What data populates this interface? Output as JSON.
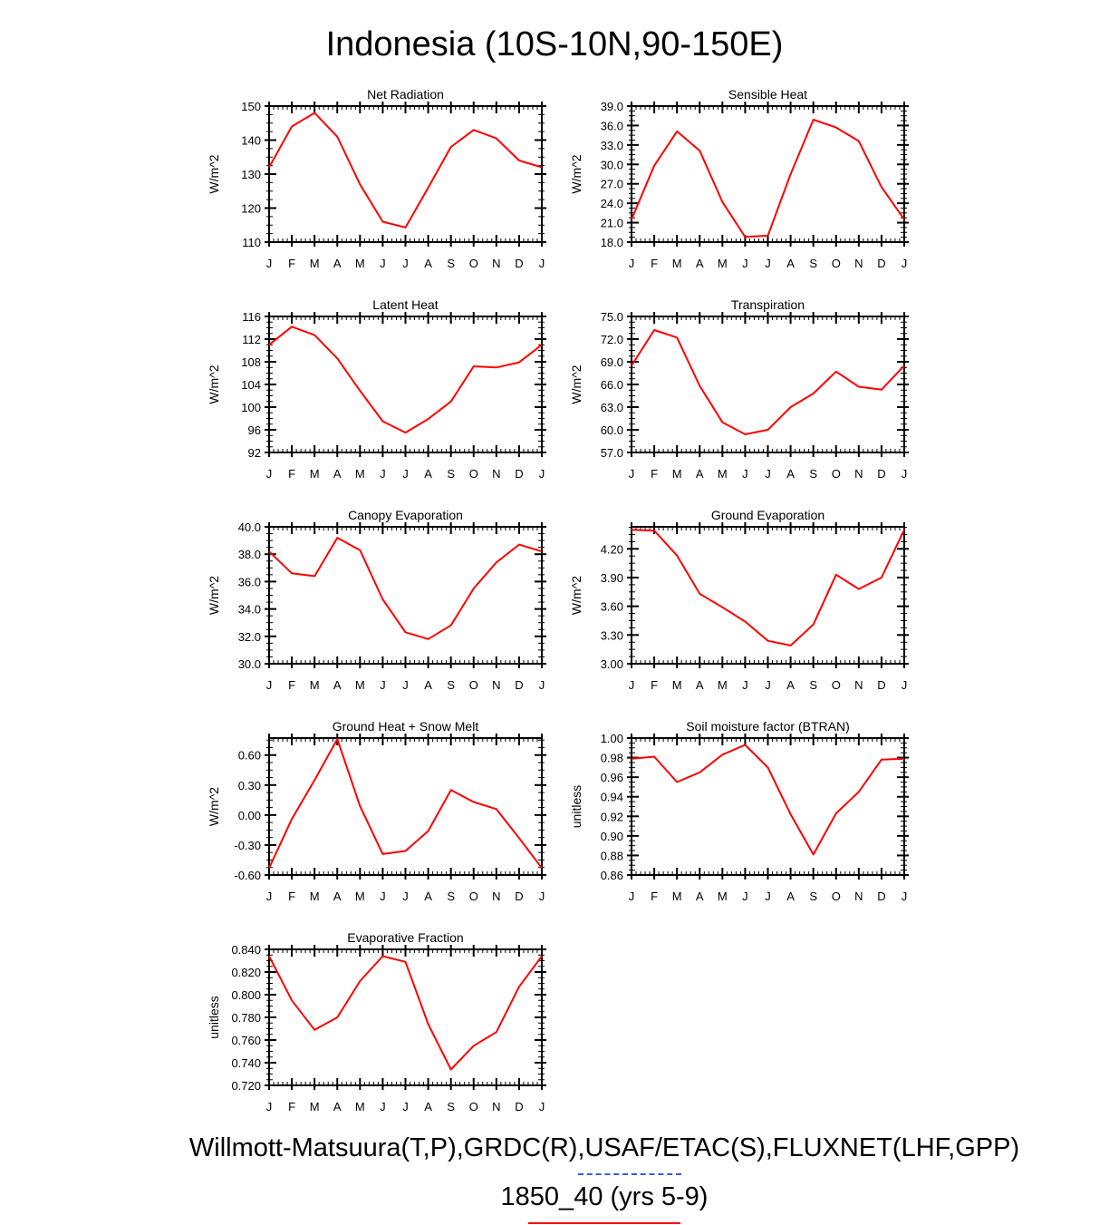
{
  "title": "Indonesia (10S-10N,90-150E)",
  "legend": {
    "reference_text": "Willmott-Matsuura(T,P),GRDC(R),USAF/ETAC(S),FLUXNET(LHF,GPP)",
    "model_text": "1850_40 (yrs 5-9)",
    "reference_color": "#3b5bdb",
    "model_color": "#ff0000"
  },
  "months": [
    "J",
    "F",
    "M",
    "A",
    "M",
    "J",
    "J",
    "A",
    "S",
    "O",
    "N",
    "D",
    "J"
  ],
  "chart_data": [
    {
      "type": "line",
      "title": "Net Radiation",
      "ylabel": "W/m^2",
      "ylim": [
        110,
        150
      ],
      "yticks": [
        110,
        120,
        130,
        140,
        150
      ],
      "ytick_labels": [
        "110",
        "120",
        "130",
        "140",
        "150"
      ],
      "series": [
        {
          "values": [
            132,
            144,
            148,
            141,
            127,
            116,
            114.3,
            126,
            138,
            143,
            140.5,
            134,
            132
          ]
        }
      ]
    },
    {
      "type": "line",
      "title": "Sensible Heat",
      "ylabel": "W/m^2",
      "ylim": [
        18,
        39
      ],
      "yticks": [
        18,
        21,
        24,
        27,
        30,
        33,
        36,
        39
      ],
      "ytick_labels": [
        "18.0",
        "21.0",
        "24.0",
        "27.0",
        "30.0",
        "33.0",
        "36.0",
        "39.0"
      ],
      "series": [
        {
          "values": [
            21.5,
            29.8,
            35.1,
            32.1,
            24.2,
            18.8,
            19.0,
            28.5,
            36.9,
            35.7,
            33.6,
            26.5,
            21.5
          ]
        }
      ]
    },
    {
      "type": "line",
      "title": "Latent Heat",
      "ylabel": "W/m^2",
      "ylim": [
        92,
        116
      ],
      "yticks": [
        92,
        96,
        100,
        104,
        108,
        112,
        116
      ],
      "ytick_labels": [
        "92",
        "96",
        "100",
        "104",
        "108",
        "112",
        "116"
      ],
      "series": [
        {
          "values": [
            111,
            114.2,
            112.7,
            108.6,
            102.9,
            97.5,
            95.5,
            97.9,
            101,
            107.2,
            107,
            107.9,
            111
          ]
        }
      ]
    },
    {
      "type": "line",
      "title": "Transpiration",
      "ylabel": "W/m^2",
      "ylim": [
        57,
        75
      ],
      "yticks": [
        57,
        60,
        63,
        66,
        69,
        72,
        75
      ],
      "ytick_labels": [
        "57.0",
        "60.0",
        "63.0",
        "66.0",
        "69.0",
        "72.0",
        "75.0"
      ],
      "series": [
        {
          "values": [
            68.5,
            73.2,
            72.2,
            65.8,
            61,
            59.4,
            60,
            63,
            64.8,
            67.7,
            65.7,
            65.3,
            68.5
          ]
        }
      ]
    },
    {
      "type": "line",
      "title": "Canopy Evaporation",
      "ylabel": "W/m^2",
      "ylim": [
        30,
        40
      ],
      "yticks": [
        30,
        32,
        34,
        36,
        38,
        40
      ],
      "ytick_labels": [
        "30.0",
        "32.0",
        "34.0",
        "36.0",
        "38.0",
        "40.0"
      ],
      "series": [
        {
          "values": [
            38.2,
            36.6,
            36.4,
            39.2,
            38.3,
            34.7,
            32.3,
            31.8,
            32.8,
            35.5,
            37.4,
            38.7,
            38.2
          ]
        }
      ]
    },
    {
      "type": "line",
      "title": "Ground Evaporation",
      "ylabel": "W/m^2",
      "ylim": [
        3,
        4.43
      ],
      "yticks": [
        3.0,
        3.3,
        3.6,
        3.9,
        4.2
      ],
      "ytick_labels": [
        "3.00",
        "3.30",
        "3.60",
        "3.90",
        "4.20"
      ],
      "series": [
        {
          "values": [
            4.4,
            4.39,
            4.13,
            3.73,
            3.59,
            3.44,
            3.24,
            3.19,
            3.41,
            3.93,
            3.78,
            3.9,
            4.4
          ]
        }
      ]
    },
    {
      "type": "line",
      "title": "Ground Heat + Snow Melt",
      "ylabel": "W/m^2",
      "ylim": [
        -0.6,
        0.77
      ],
      "yticks": [
        -0.6,
        -0.3,
        0,
        0.3,
        0.6
      ],
      "ytick_labels": [
        "-0.60",
        "-0.30",
        "0.00",
        "0.30",
        "0.60"
      ],
      "series": [
        {
          "values": [
            -0.53,
            -0.04,
            0.35,
            0.76,
            0.09,
            -0.39,
            -0.36,
            -0.16,
            0.25,
            0.13,
            0.06,
            -0.23,
            -0.53
          ]
        }
      ]
    },
    {
      "type": "line",
      "title": "Soil moisture factor (BTRAN)",
      "ylabel": "unitless",
      "ylim": [
        0.86,
        1.0
      ],
      "yticks": [
        0.86,
        0.88,
        0.9,
        0.92,
        0.94,
        0.96,
        0.98,
        1.0
      ],
      "ytick_labels": [
        "0.86",
        "0.88",
        "0.90",
        "0.92",
        "0.94",
        "0.96",
        "0.98",
        "1.00"
      ],
      "series": [
        {
          "values": [
            0.979,
            0.981,
            0.955,
            0.965,
            0.983,
            0.993,
            0.97,
            0.922,
            0.881,
            0.923,
            0.945,
            0.978,
            0.979
          ]
        }
      ]
    },
    {
      "type": "line",
      "title": "Evaporative Fraction",
      "ylabel": "unitless",
      "ylim": [
        0.72,
        0.84
      ],
      "yticks": [
        0.72,
        0.74,
        0.76,
        0.78,
        0.8,
        0.82,
        0.84
      ],
      "ytick_labels": [
        "0.720",
        "0.740",
        "0.760",
        "0.780",
        "0.800",
        "0.820",
        "0.840"
      ],
      "series": [
        {
          "values": [
            0.834,
            0.795,
            0.769,
            0.78,
            0.812,
            0.834,
            0.829,
            0.774,
            0.734,
            0.755,
            0.767,
            0.807,
            0.834
          ]
        }
      ]
    }
  ]
}
